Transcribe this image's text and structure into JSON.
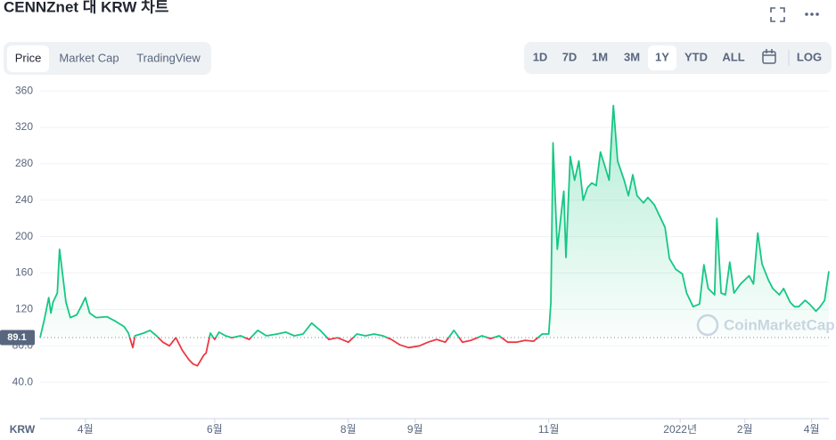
{
  "header": {
    "title": "CENNZnet 대 KRW 차트"
  },
  "tabs": [
    "Price",
    "Market Cap",
    "TradingView"
  ],
  "active_tab": "Price",
  "ranges": [
    "1D",
    "7D",
    "1M",
    "3M",
    "1Y",
    "YTD",
    "ALL"
  ],
  "active_range": "1Y",
  "log_button": "LOG",
  "chart_data": {
    "type": "line",
    "x_label": "KRW",
    "watermark": "CoinMarketCap",
    "log_scale": false,
    "grid": true,
    "baseline": 89.1,
    "up_color": "#16c784",
    "down_color": "#ea3943",
    "xlim": [
      0,
      366
    ],
    "xticks": [
      {
        "value": 21,
        "label": "4월"
      },
      {
        "value": 81,
        "label": "6월"
      },
      {
        "value": 143,
        "label": "8월"
      },
      {
        "value": 174,
        "label": "9월"
      },
      {
        "value": 236,
        "label": "11월"
      },
      {
        "value": 297,
        "label": "2022년"
      },
      {
        "value": 327,
        "label": "2월"
      },
      {
        "value": 358,
        "label": "4월"
      }
    ],
    "ylim": [
      0,
      367
    ],
    "yticks": [
      {
        "value": 40,
        "label": "40.0"
      },
      {
        "value": 80,
        "label": "80.0"
      },
      120,
      160,
      200,
      240,
      280,
      320,
      360
    ],
    "x": [
      0,
      2,
      4,
      5,
      6,
      8,
      9,
      10,
      12,
      14,
      17,
      19,
      21,
      23,
      26,
      31,
      35,
      39,
      41,
      43,
      44,
      48,
      51,
      54,
      57,
      60,
      63,
      66,
      69,
      71,
      73,
      76,
      77,
      79,
      81,
      83,
      86,
      89,
      93,
      97,
      101,
      105,
      110,
      114,
      118,
      122,
      126,
      130,
      134,
      138,
      143,
      147,
      151,
      155,
      159,
      163,
      167,
      171,
      176,
      180,
      184,
      188,
      192,
      196,
      200,
      205,
      209,
      213,
      217,
      221,
      225,
      229,
      233,
      236,
      237,
      238,
      240,
      242,
      243,
      244,
      246,
      248,
      250,
      252,
      254,
      256,
      258,
      260,
      262,
      264,
      266,
      268,
      271,
      273,
      275,
      277,
      280,
      282,
      285,
      288,
      290,
      292,
      295,
      298,
      300,
      303,
      306,
      308,
      310,
      313,
      314,
      316,
      318,
      320,
      322,
      325,
      329,
      331,
      333,
      335,
      338,
      340,
      343,
      345,
      348,
      350,
      352,
      355,
      357,
      360,
      362,
      364,
      366
    ],
    "values": [
      89,
      109,
      133,
      116,
      128,
      138,
      186,
      167,
      128,
      111,
      114,
      123,
      133,
      116,
      111,
      112,
      107,
      101,
      94,
      78,
      91,
      94,
      97,
      91,
      84,
      80,
      89,
      75,
      65,
      60,
      58,
      70,
      72,
      94,
      87,
      95,
      91,
      89,
      91,
      87,
      97,
      91,
      93,
      95,
      91,
      93,
      105,
      97,
      87,
      89,
      84,
      93,
      91,
      93,
      91,
      87,
      81,
      78,
      80,
      84,
      87,
      84,
      97,
      84,
      86,
      91,
      88,
      91,
      84,
      84,
      86,
      85,
      93,
      93,
      128,
      303,
      186,
      230,
      250,
      177,
      288,
      262,
      283,
      240,
      254,
      259,
      256,
      293,
      278,
      262,
      344,
      283,
      262,
      245,
      268,
      245,
      237,
      243,
      235,
      220,
      210,
      176,
      164,
      159,
      138,
      123,
      126,
      169,
      143,
      136,
      220,
      138,
      136,
      172,
      138,
      148,
      157,
      148,
      204,
      170,
      152,
      143,
      136,
      143,
      128,
      123,
      123,
      130,
      126,
      118,
      123,
      130,
      162
    ]
  }
}
